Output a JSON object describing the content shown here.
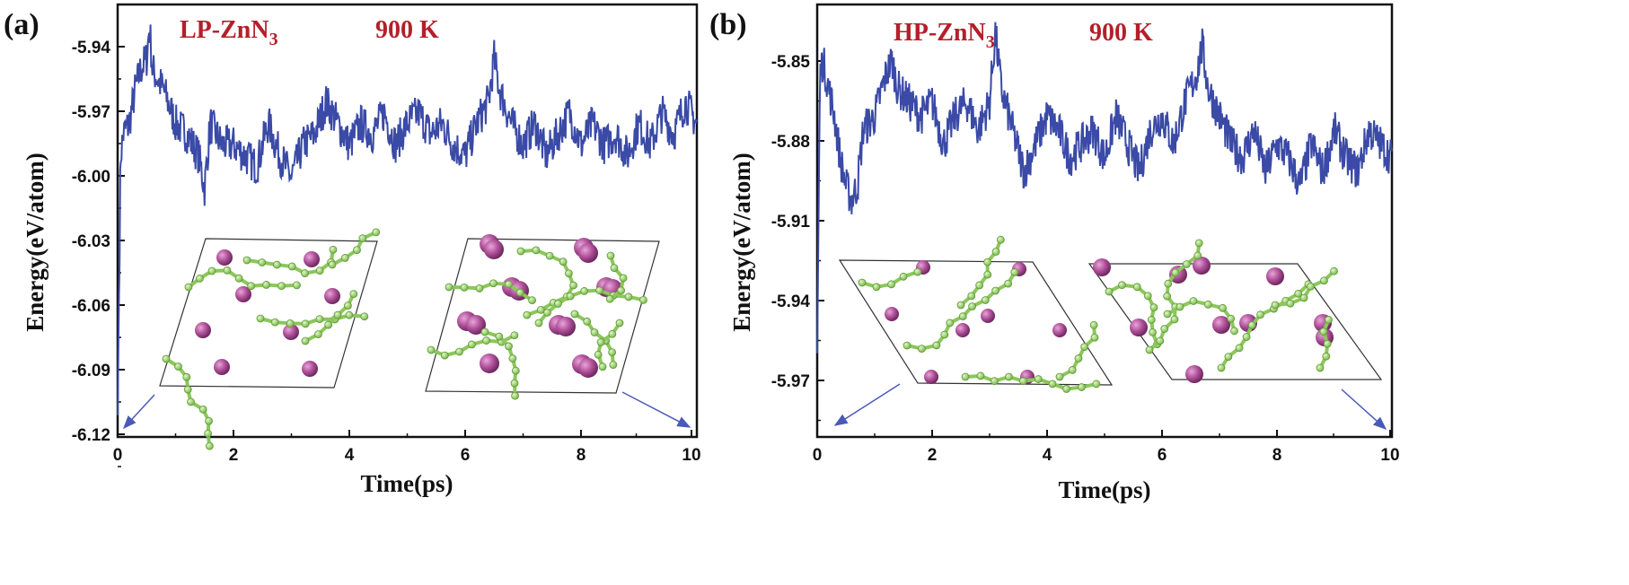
{
  "colors": {
    "line": "#3a4aa6",
    "annotation": "#b3202a",
    "atom_zn": "#b0509a",
    "bond_n": "#9bd36a",
    "arrow": "#4a5ab8"
  },
  "chart_data": [
    {
      "type": "line",
      "panel": "(a)",
      "compound_prefix": "LP-ZnN",
      "compound_sub": "3",
      "temperature": "900 K",
      "xlabel": "Time(ps)",
      "ylabel": "Energy(eV/atom)",
      "xlim": [
        0,
        10
      ],
      "ylim": [
        -6.12,
        -5.92
      ],
      "xticks": [
        "0",
        "2",
        "4",
        "6",
        "8",
        "10"
      ],
      "yticks": [
        "-5.94",
        "-5.97",
        "-6.00",
        "-6.03",
        "-6.06",
        "-6.09",
        "-6.12"
      ],
      "grid": false,
      "series": [
        {
          "x": [
            0,
            0.05,
            0.1,
            0.2,
            0.3,
            0.4,
            0.5,
            0.55,
            0.6,
            0.8,
            1.0,
            1.2,
            1.4,
            1.5,
            1.6,
            1.8,
            2.0,
            2.2,
            2.4,
            2.6,
            2.8,
            3.0,
            3.2,
            3.4,
            3.6,
            3.8,
            4.0,
            4.2,
            4.4,
            4.6,
            4.8,
            5.0,
            5.2,
            5.4,
            5.6,
            5.8,
            6.0,
            6.2,
            6.4,
            6.5,
            6.6,
            6.8,
            7.0,
            7.2,
            7.4,
            7.6,
            7.8,
            8.0,
            8.2,
            8.4,
            8.6,
            8.8,
            9.0,
            9.2,
            9.4,
            9.6,
            9.8,
            10.0
          ],
          "y": [
            -6.11,
            -5.99,
            -5.98,
            -5.975,
            -5.96,
            -5.95,
            -5.945,
            -5.93,
            -5.95,
            -5.96,
            -5.975,
            -5.98,
            -5.99,
            -6.005,
            -5.975,
            -5.985,
            -5.985,
            -5.99,
            -5.995,
            -5.975,
            -5.99,
            -6.0,
            -5.985,
            -5.98,
            -5.965,
            -5.975,
            -5.985,
            -5.975,
            -5.98,
            -5.97,
            -5.985,
            -5.975,
            -5.97,
            -5.98,
            -5.975,
            -5.985,
            -5.99,
            -5.975,
            -5.965,
            -5.945,
            -5.96,
            -5.975,
            -5.985,
            -5.975,
            -5.99,
            -5.98,
            -5.97,
            -5.985,
            -5.975,
            -5.985,
            -5.98,
            -5.99,
            -5.975,
            -5.985,
            -5.97,
            -5.98,
            -5.965,
            -5.975
          ]
        }
      ]
    },
    {
      "type": "line",
      "panel": "(b)",
      "compound_prefix": "HP-ZnN",
      "compound_sub": "3",
      "temperature": "900 K",
      "xlabel": "Time(ps)",
      "ylabel": "Energy(eV/atom)",
      "xlim": [
        0,
        10
      ],
      "ylim": [
        -5.99,
        -5.835
      ],
      "xticks": [
        "0",
        "2",
        "4",
        "6",
        "8",
        "10"
      ],
      "yticks": [
        "-5.85",
        "-5.88",
        "-5.91",
        "-5.94",
        "-5.97"
      ],
      "grid": false,
      "series": [
        {
          "x": [
            0,
            0.05,
            0.1,
            0.2,
            0.3,
            0.4,
            0.5,
            0.6,
            0.7,
            0.8,
            1.0,
            1.2,
            1.3,
            1.4,
            1.6,
            1.8,
            2.0,
            2.2,
            2.4,
            2.6,
            2.8,
            3.0,
            3.1,
            3.2,
            3.4,
            3.6,
            3.8,
            4.0,
            4.2,
            4.4,
            4.6,
            4.8,
            5.0,
            5.2,
            5.4,
            5.6,
            5.8,
            6.0,
            6.2,
            6.4,
            6.6,
            6.7,
            6.8,
            7.0,
            7.2,
            7.4,
            7.6,
            7.8,
            8.0,
            8.2,
            8.4,
            8.6,
            8.8,
            9.0,
            9.2,
            9.4,
            9.6,
            9.8,
            10.0
          ],
          "y": [
            -5.96,
            -5.86,
            -5.855,
            -5.865,
            -5.875,
            -5.89,
            -5.9,
            -5.905,
            -5.9,
            -5.88,
            -5.875,
            -5.86,
            -5.855,
            -5.865,
            -5.87,
            -5.875,
            -5.87,
            -5.885,
            -5.875,
            -5.87,
            -5.88,
            -5.87,
            -5.845,
            -5.865,
            -5.88,
            -5.895,
            -5.885,
            -5.875,
            -5.88,
            -5.89,
            -5.885,
            -5.88,
            -5.89,
            -5.875,
            -5.885,
            -5.895,
            -5.88,
            -5.875,
            -5.885,
            -5.87,
            -5.86,
            -5.85,
            -5.865,
            -5.875,
            -5.885,
            -5.89,
            -5.88,
            -5.895,
            -5.885,
            -5.89,
            -5.9,
            -5.885,
            -5.895,
            -5.88,
            -5.89,
            -5.895,
            -5.88,
            -5.885,
            -5.89
          ]
        }
      ]
    }
  ]
}
